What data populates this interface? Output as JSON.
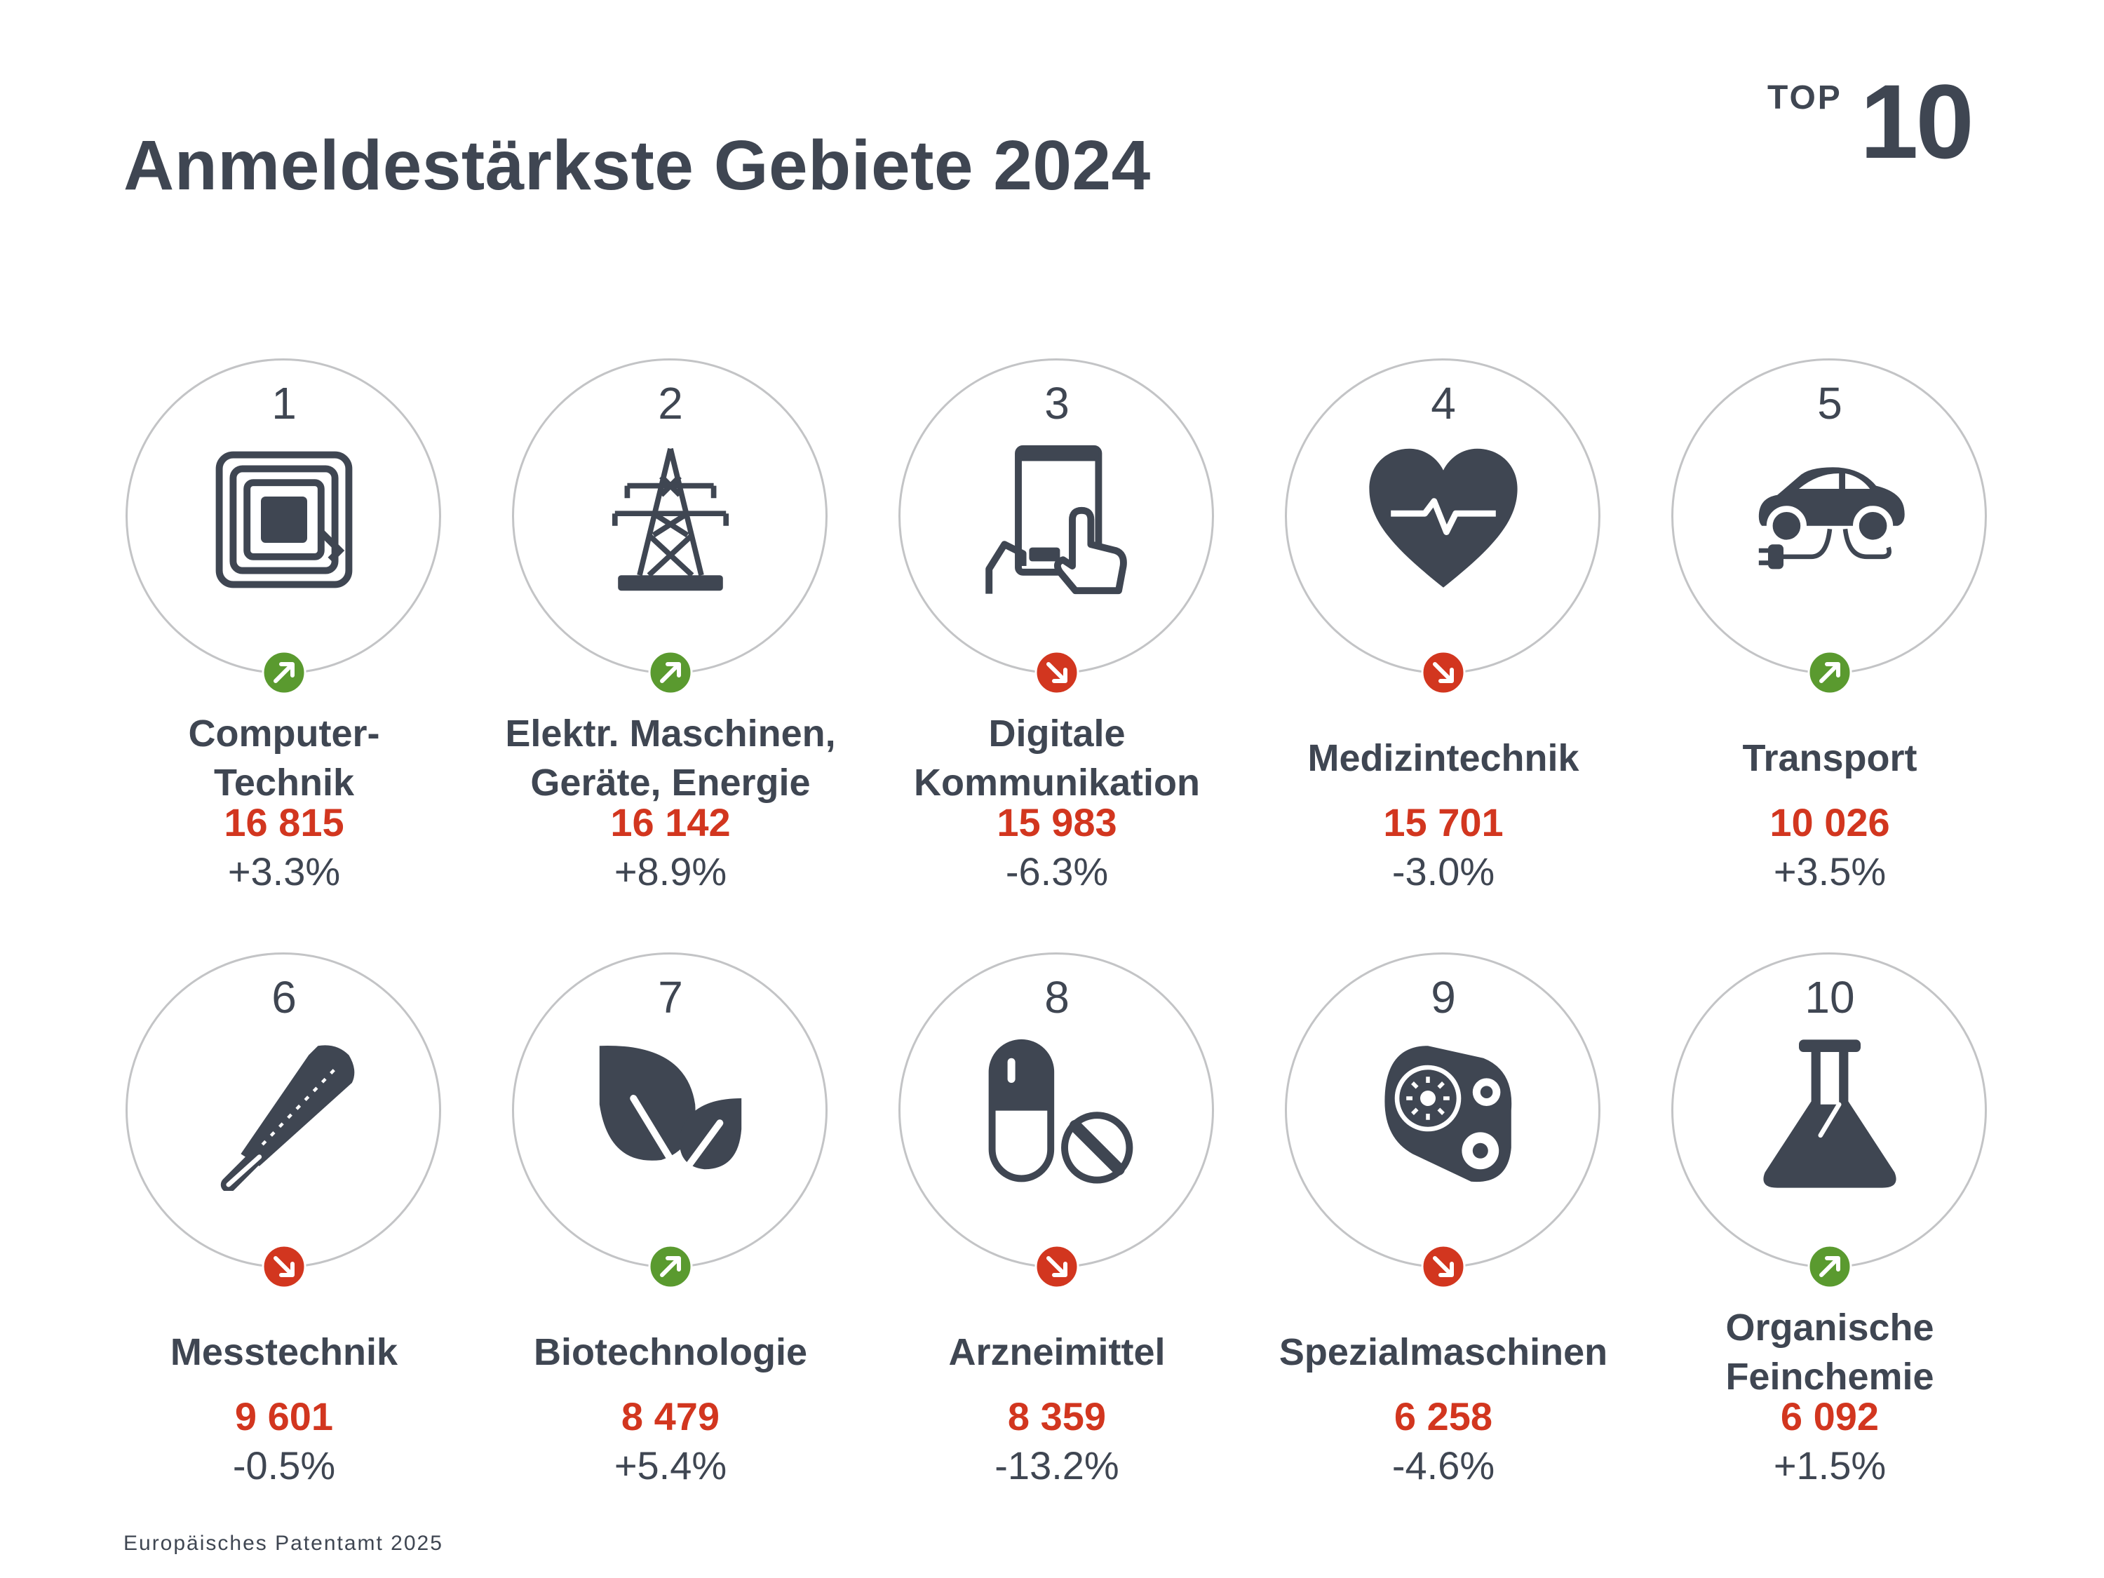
{
  "page": {
    "title": "Anmeldestärkste Gebiete 2024",
    "badge_top": "TOP",
    "badge_number": "10",
    "footer": "Europäisches Patentamt 2025"
  },
  "colors": {
    "text": "#3f4652",
    "value": "#d2361f",
    "trend_up": "#5a9a2f",
    "trend_down": "#d2361f",
    "circle_border": "#c3c4c6"
  },
  "fields": [
    {
      "rank": "1",
      "label": "Computer-\nTechnik",
      "value": "16 815",
      "change": "+3.3%",
      "trend": "up",
      "icon": "rfid-chip-icon"
    },
    {
      "rank": "2",
      "label": "Elektr. Maschinen,\nGeräte, Energie",
      "value": "16 142",
      "change": "+8.9%",
      "trend": "up",
      "icon": "power-pylon-icon"
    },
    {
      "rank": "3",
      "label": "Digitale\nKommunikation",
      "value": "15 983",
      "change": "-6.3%",
      "trend": "down",
      "icon": "tablet-touch-icon"
    },
    {
      "rank": "4",
      "label": "Medizintechnik",
      "value": "15 701",
      "change": "-3.0%",
      "trend": "down",
      "icon": "heart-pulse-icon"
    },
    {
      "rank": "5",
      "label": "Transport",
      "value": "10 026",
      "change": "+3.5%",
      "trend": "up",
      "icon": "electric-car-icon"
    },
    {
      "rank": "6",
      "label": "Messtechnik",
      "value": "9 601",
      "change": "-0.5%",
      "trend": "down",
      "icon": "thermometer-icon"
    },
    {
      "rank": "7",
      "label": "Biotechnologie",
      "value": "8 479",
      "change": "+5.4%",
      "trend": "up",
      "icon": "leaves-icon"
    },
    {
      "rank": "8",
      "label": "Arzneimittel",
      "value": "8 359",
      "change": "-13.2%",
      "trend": "down",
      "icon": "pills-icon"
    },
    {
      "rank": "9",
      "label": "Spezialmaschinen",
      "value": "6 258",
      "change": "-4.6%",
      "trend": "down",
      "icon": "belt-drive-icon"
    },
    {
      "rank": "10",
      "label": "Organische\nFeinchemie",
      "value": "6 092",
      "change": "+1.5%",
      "trend": "up",
      "icon": "flask-icon"
    }
  ]
}
